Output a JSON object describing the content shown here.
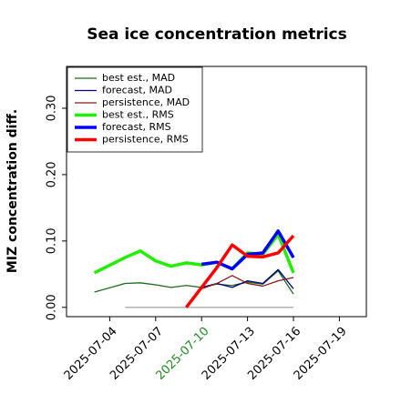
{
  "chart_data": {
    "type": "line",
    "title": "Sea ice concentration metrics",
    "ylabel": "MIZ concentration diff.",
    "xlim": [
      "2025-07-01",
      "2025-07-21"
    ],
    "xticks": [
      "2025-07-04",
      "2025-07-07",
      "2025-07-10",
      "2025-07-13",
      "2025-07-16",
      "2025-07-19"
    ],
    "highlight_xtick": 2,
    "highlight_color": "#228b22",
    "ylim": [
      -0.014,
      0.363
    ],
    "yticks": [
      {
        "value": 0,
        "label": "0.00"
      },
      {
        "value": 0.1,
        "label": "0.10"
      },
      {
        "value": 0.2,
        "label": "0.20"
      },
      {
        "value": 0.3,
        "label": "0.30"
      }
    ],
    "legend": "upper left",
    "zero_line": {
      "x": [
        "2025-07-05",
        "2025-07-16"
      ],
      "y": 0,
      "color": "#999999"
    },
    "series": [
      {
        "name": "best est., MAD",
        "color": "#1a6b1a",
        "width": 1.3,
        "x": [
          "2025-07-03",
          "2025-07-05",
          "2025-07-06",
          "2025-07-07",
          "2025-07-08",
          "2025-07-09",
          "2025-07-10",
          "2025-07-11",
          "2025-07-12",
          "2025-07-13",
          "2025-07-14",
          "2025-07-15",
          "2025-07-16"
        ],
        "values": [
          0.023,
          0.036,
          0.037,
          0.034,
          0.03,
          0.033,
          0.03,
          0.035,
          0.033,
          0.038,
          0.035,
          0.055,
          0.02
        ]
      },
      {
        "name": "forecast,  MAD",
        "color": "#000080",
        "width": 1.3,
        "x": [
          "2025-07-10",
          "2025-07-11",
          "2025-07-12",
          "2025-07-13",
          "2025-07-14",
          "2025-07-15",
          "2025-07-16"
        ],
        "values": [
          0.03,
          0.036,
          0.03,
          0.04,
          0.036,
          0.057,
          0.028
        ]
      },
      {
        "name": "persistence, MAD",
        "color": "#8b1a1a",
        "width": 1.3,
        "x": [
          "2025-07-09",
          "2025-07-10",
          "2025-07-11",
          "2025-07-12",
          "2025-07-13",
          "2025-07-14",
          "2025-07-15",
          "2025-07-16"
        ],
        "values": [
          0.0,
          0.028,
          0.036,
          0.048,
          0.036,
          0.032,
          0.04,
          0.045
        ]
      },
      {
        "name": "best est., RMS",
        "color": "#22ee00",
        "width": 3.5,
        "x": [
          "2025-07-03",
          "2025-07-05",
          "2025-07-06",
          "2025-07-07",
          "2025-07-08",
          "2025-07-09",
          "2025-07-10",
          "2025-07-11",
          "2025-07-12",
          "2025-07-13",
          "2025-07-14",
          "2025-07-15",
          "2025-07-16"
        ],
        "values": [
          0.052,
          0.075,
          0.085,
          0.07,
          0.062,
          0.067,
          0.064,
          0.068,
          0.058,
          0.082,
          0.08,
          0.11,
          0.052
        ]
      },
      {
        "name": "forecast,  RMS",
        "color": "#0000ff",
        "width": 3.5,
        "x": [
          "2025-07-10",
          "2025-07-11",
          "2025-07-12",
          "2025-07-13",
          "2025-07-14",
          "2025-07-15",
          "2025-07-16"
        ],
        "values": [
          0.065,
          0.068,
          0.058,
          0.08,
          0.082,
          0.115,
          0.075
        ]
      },
      {
        "name": "persistence, RMS",
        "color": "#ff0000",
        "width": 3.5,
        "x": [
          "2025-07-09",
          "2025-07-10",
          "2025-07-11",
          "2025-07-12",
          "2025-07-13",
          "2025-07-14",
          "2025-07-15",
          "2025-07-16"
        ],
        "values": [
          0.0,
          0.03,
          0.06,
          0.094,
          0.077,
          0.076,
          0.082,
          0.108
        ]
      }
    ]
  }
}
